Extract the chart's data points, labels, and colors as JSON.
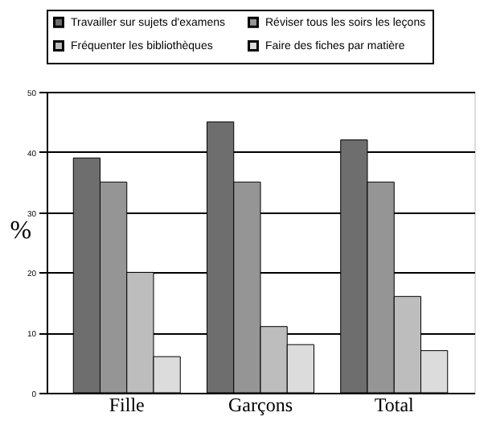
{
  "chart_data": {
    "type": "bar",
    "ylabel": "%",
    "categories": [
      "Fille",
      "Garçons",
      "Total"
    ],
    "series": [
      {
        "name": "Travailler sur sujets d'examens",
        "color": "#6e6e6e",
        "values": [
          39,
          45,
          42
        ]
      },
      {
        "name": "Réviser tous les soirs les leçons",
        "color": "#959595",
        "values": [
          35,
          35,
          35
        ]
      },
      {
        "name": "Fréquenter les bibliothèques",
        "color": "#bdbdbd",
        "values": [
          20,
          11,
          16
        ]
      },
      {
        "name": "Faire des fiches par matière",
        "color": "#dcdcdc",
        "values": [
          6,
          8,
          7
        ]
      }
    ],
    "ylim": [
      0,
      50
    ],
    "yticks": [
      0,
      10,
      20,
      30,
      40,
      50
    ],
    "grid": "y",
    "legend": "top"
  }
}
